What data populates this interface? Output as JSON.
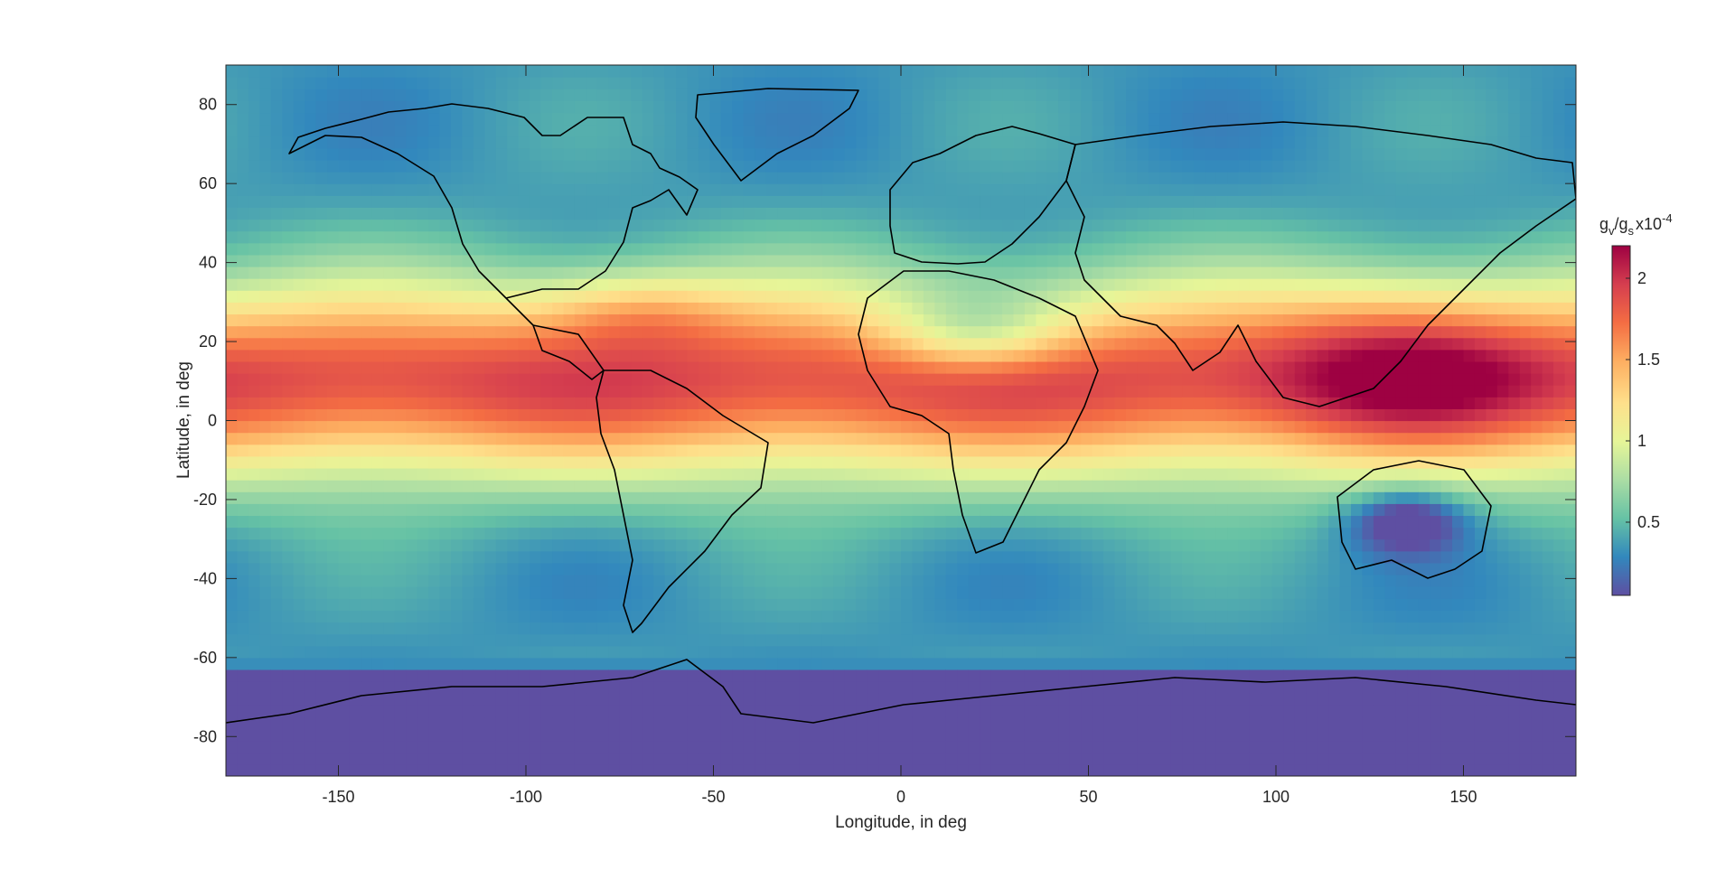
{
  "chart_data": {
    "type": "heatmap",
    "title": "",
    "xlabel": "Longitude, in deg",
    "ylabel": "Latitude, in deg",
    "xlim": [
      -180,
      180
    ],
    "ylim": [
      -90,
      90
    ],
    "xticks": [
      -150,
      -100,
      -50,
      0,
      50,
      100,
      150
    ],
    "yticks": [
      -80,
      -60,
      -40,
      -20,
      0,
      20,
      40,
      60,
      80
    ],
    "colorbar": {
      "label_main": "g",
      "label_sub1": "v",
      "label_mid": "/g",
      "label_sub2": "s",
      "exponent_base": "x10",
      "exponent": "-4",
      "range": [
        0.05,
        2.2
      ],
      "ticks": [
        0.5,
        1,
        1.5,
        2
      ],
      "colormap": "Spectral (reversed): purple-blue low, yellow mid, red high",
      "colors": [
        "#5e4fa2",
        "#3288bd",
        "#66c2a5",
        "#abdda4",
        "#e6f598",
        "#fee08b",
        "#fdae61",
        "#f46d43",
        "#d53e4f",
        "#9e0142"
      ]
    },
    "coastlines": true,
    "grid": false
  }
}
